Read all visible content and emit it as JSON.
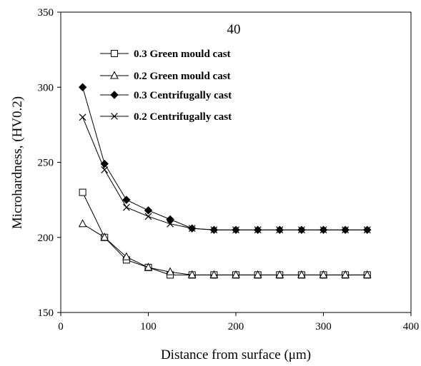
{
  "chart_data": {
    "type": "line",
    "annotation": "40",
    "xlabel": "Distance from surface (μm)",
    "ylabel": "Microhardness, (HV0.2)",
    "xlim": [
      0,
      400
    ],
    "ylim": [
      150,
      350
    ],
    "x_ticks": [
      0,
      100,
      200,
      300,
      400
    ],
    "y_ticks": [
      150,
      200,
      250,
      300,
      350
    ],
    "grid": false,
    "legend_position": "top-center",
    "x": [
      25,
      50,
      75,
      100,
      125,
      150,
      175,
      200,
      225,
      250,
      275,
      300,
      325,
      350
    ],
    "series": [
      {
        "name": "0.3 Green mould cast",
        "marker": "open-square",
        "color": "#000000",
        "values": [
          230,
          200,
          185,
          180,
          175,
          175,
          175,
          175,
          175,
          175,
          175,
          175,
          175,
          175
        ]
      },
      {
        "name": "0.2 Green mould cast",
        "marker": "open-triangle",
        "color": "#000000",
        "values": [
          209,
          200,
          187,
          180,
          177,
          175,
          175,
          175,
          175,
          175,
          175,
          175,
          175,
          175
        ]
      },
      {
        "name": "0.3 Centrifugally cast",
        "marker": "filled-diamond",
        "color": "#000000",
        "values": [
          300,
          249,
          225,
          218,
          212,
          206,
          205,
          205,
          205,
          205,
          205,
          205,
          205,
          205
        ]
      },
      {
        "name": "0.2  Centrifugally cast",
        "marker": "x-cross",
        "color": "#000000",
        "values": [
          280,
          245,
          220,
          214,
          209,
          206,
          205,
          205,
          205,
          205,
          205,
          205,
          205,
          205
        ]
      }
    ]
  }
}
